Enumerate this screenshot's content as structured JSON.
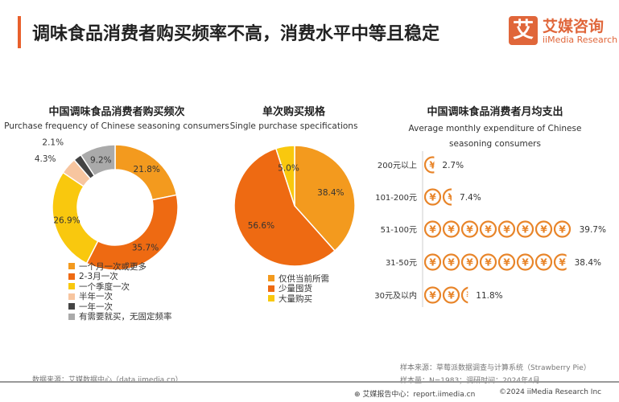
{
  "header": {
    "title": "调味食品消费者购买频率不高，消费水平中等且稳定",
    "logo_mark": "艾",
    "logo_cn": "艾媒咨询",
    "logo_en": "iiMedia Research"
  },
  "chart_data": [
    {
      "type": "pie",
      "variant": "donut",
      "title": "中国调味食品消费者购买频次",
      "subtitle": "Purchase frequency of Chinese seasoning consumers",
      "legend": "bottom",
      "categories": [
        "一个月一次或更多",
        "2-3月一次",
        "一个季度一次",
        "半年一次",
        "一年一次",
        "有需要就买，无固定频率"
      ],
      "values": [
        21.8,
        35.7,
        26.9,
        4.3,
        2.1,
        9.2
      ],
      "labels": [
        "21.8%",
        "35.7%",
        "26.9%",
        "4.3%",
        "2.1%",
        "9.2%"
      ],
      "colors": [
        "#F39A1E",
        "#EE6A12",
        "#F9C80E",
        "#F7C59F",
        "#444444",
        "#AAAAAA"
      ]
    },
    {
      "type": "pie",
      "title": "单次购买规格",
      "subtitle": "Single purchase specifications",
      "legend": "bottom",
      "categories": [
        "仅供当前所需",
        "少量囤货",
        "大量购买"
      ],
      "values": [
        38.4,
        56.6,
        5.0
      ],
      "labels": [
        "38.4%",
        "56.6%",
        "5.0%"
      ],
      "colors": [
        "#F39A1E",
        "#EE6A12",
        "#F9C80E"
      ]
    },
    {
      "type": "bar",
      "variant": "pictogram",
      "icon": "yuan-coin-icon",
      "title": "中国调味食品消费者月均支出",
      "subtitle": "Average monthly expenditure of Chinese seasoning consumers",
      "categories": [
        "200元以上",
        "101-200元",
        "51-100元",
        "31-50元",
        "30元及以内"
      ],
      "values": [
        2.7,
        7.4,
        39.7,
        38.4,
        11.8
      ],
      "labels": [
        "2.7%",
        "7.4%",
        "39.7%",
        "38.4%",
        "11.8%"
      ],
      "color": "#E8852A"
    }
  ],
  "footer": {
    "source": "数据来源：艾媒数据中心（data.iimedia.cn）",
    "sample_source": "样本来源：草莓派数据调查与计算系统（Strawberry Pie）",
    "sample_size": "样本量：N=1983；调研时间：2024年4月",
    "report": "艾媒报告中心：report.iimedia.cn",
    "copyright": "©2024  iiMedia Research Inc"
  }
}
